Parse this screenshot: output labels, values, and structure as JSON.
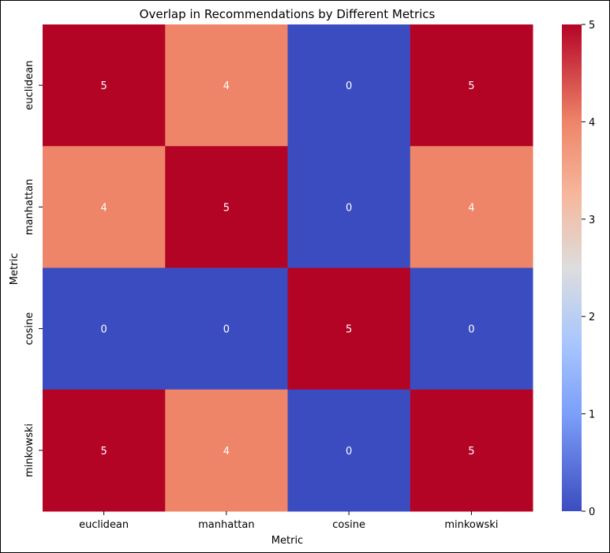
{
  "chart_data": {
    "type": "heatmap",
    "title": "Overlap in Recommendations by Different Metrics",
    "xlabel": "Metric",
    "ylabel": "Metric",
    "x_categories": [
      "euclidean",
      "manhattan",
      "cosine",
      "minkowski"
    ],
    "y_categories": [
      "euclidean",
      "manhattan",
      "cosine",
      "minkowski"
    ],
    "values": [
      [
        5,
        4,
        0,
        5
      ],
      [
        4,
        5,
        0,
        4
      ],
      [
        0,
        0,
        5,
        0
      ],
      [
        5,
        4,
        0,
        5
      ]
    ],
    "colormap": "coolwarm",
    "vmin": 0,
    "vmax": 5,
    "colorbar_ticks": [
      0,
      1,
      2,
      3,
      4,
      5
    ],
    "annotate": true,
    "grid": false
  }
}
